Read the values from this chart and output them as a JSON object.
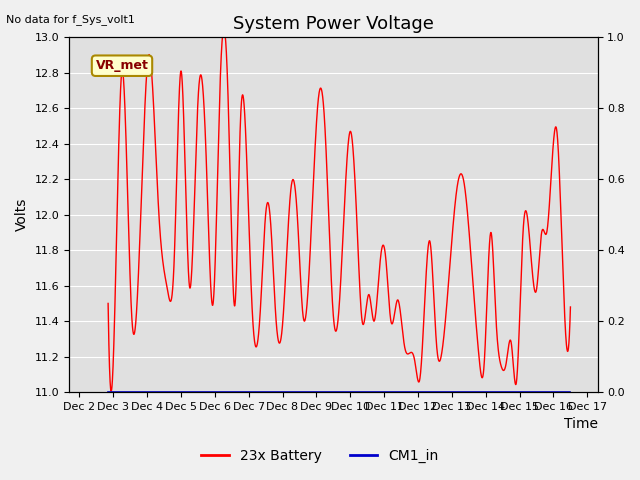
{
  "title": "System Power Voltage",
  "top_left_note": "No data for f_Sys_volt1",
  "ylabel": "Volts",
  "xlabel": "Time",
  "ylim_left": [
    11.0,
    13.0
  ],
  "ylim_right": [
    0.0,
    1.0
  ],
  "xtick_labels": [
    "Dec 2",
    "Dec 3",
    "Dec 4",
    "Dec 5",
    "Dec 6",
    "Dec 7",
    "Dec 8",
    "Dec 9",
    "Dec 10",
    "Dec 11",
    "Dec 12",
    "Dec 13",
    "Dec 14",
    "Dec 15",
    "Dec 16",
    "Dec 17"
  ],
  "vr_met_text": "VR_met",
  "line1_color": "#ff0000",
  "line2_color": "#0000cc",
  "line1_label": "23x Battery",
  "line2_label": "CM1_in",
  "fig_facecolor": "#f0f0f0",
  "ax_facecolor": "#e0e0e0",
  "grid_color": "#ffffff",
  "title_fontsize": 13,
  "note_fontsize": 8,
  "tick_fontsize": 8,
  "ylabel_fontsize": 10,
  "xlabel_fontsize": 10,
  "legend_fontsize": 10,
  "waypoints_x": [
    0.85,
    1.05,
    1.25,
    1.55,
    2.05,
    2.35,
    2.6,
    2.8,
    3.0,
    3.25,
    3.5,
    3.75,
    3.95,
    4.15,
    4.4,
    4.6,
    4.75,
    4.95,
    5.1,
    5.35,
    5.5,
    5.65,
    5.8,
    6.0,
    6.25,
    6.45,
    6.6,
    7.05,
    7.25,
    7.5,
    7.65,
    8.0,
    8.2,
    8.35,
    8.55,
    8.7,
    8.9,
    9.05,
    9.2,
    9.4,
    9.6,
    9.75,
    9.9,
    10.05,
    10.35,
    10.55,
    10.7,
    11.15,
    11.35,
    11.55,
    11.7,
    11.8,
    11.95,
    12.15,
    12.3,
    12.45,
    12.6,
    12.75,
    12.9,
    13.1,
    13.3,
    13.5,
    13.65,
    13.8,
    14.1,
    14.3,
    14.5
  ],
  "waypoints_v": [
    11.5,
    11.48,
    12.8,
    11.42,
    12.9,
    12.0,
    11.58,
    11.74,
    12.81,
    11.6,
    12.63,
    12.3,
    11.5,
    12.7,
    12.61,
    11.5,
    12.49,
    12.27,
    11.48,
    11.48,
    12.0,
    11.95,
    11.43,
    11.38,
    12.15,
    11.95,
    11.44,
    12.64,
    12.5,
    11.43,
    11.43,
    12.47,
    11.94,
    11.4,
    11.55,
    11.4,
    11.77,
    11.75,
    11.4,
    11.52,
    11.26,
    11.22,
    11.18,
    11.07,
    11.85,
    11.26,
    11.22,
    12.15,
    12.19,
    11.8,
    11.42,
    11.2,
    11.15,
    11.9,
    11.42,
    11.15,
    11.16,
    11.28,
    11.05,
    11.9,
    11.85,
    11.58,
    11.9,
    11.9,
    12.47,
    11.57,
    11.48
  ]
}
